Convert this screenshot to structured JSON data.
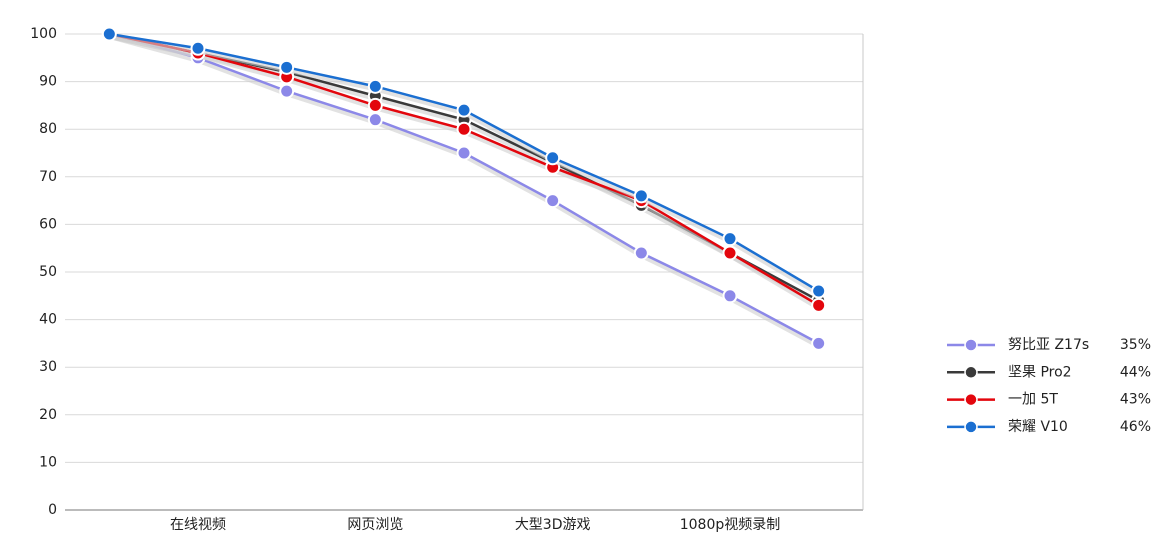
{
  "chart_data": {
    "type": "line",
    "categories": [
      null,
      "在线视频",
      null,
      "网页浏览",
      null,
      "大型3D游戏",
      null,
      "1080p视频录制",
      null
    ],
    "series": [
      {
        "name": "努比亚 Z17s",
        "color": "#8c88e8",
        "values": [
          100,
          95,
          88,
          82,
          75,
          65,
          54,
          45,
          35
        ],
        "legend_value": {
          "value": 35,
          "label": "35%"
        }
      },
      {
        "name": "坚果 Pro2",
        "color": "#3a3a3a",
        "values": [
          100,
          96,
          92,
          87,
          82,
          73,
          64,
          54,
          44
        ],
        "legend_value": {
          "value": 44,
          "label": "44%"
        }
      },
      {
        "name": "一加 5T",
        "color": "#e3060d",
        "values": [
          100,
          96,
          91,
          85,
          80,
          72,
          65,
          54,
          43
        ],
        "legend_value": {
          "value": 43,
          "label": "43%"
        }
      },
      {
        "name": "荣耀 V10",
        "color": "#1b6fd1",
        "values": [
          100,
          97,
          93,
          89,
          84,
          74,
          66,
          57,
          46
        ],
        "legend_value": {
          "value": 46,
          "label": "46%"
        }
      }
    ],
    "ylim": [
      0,
      100
    ],
    "yticks": [
      0,
      10,
      20,
      30,
      40,
      50,
      60,
      70,
      80,
      90,
      100
    ],
    "grid": true,
    "legend": "right"
  }
}
